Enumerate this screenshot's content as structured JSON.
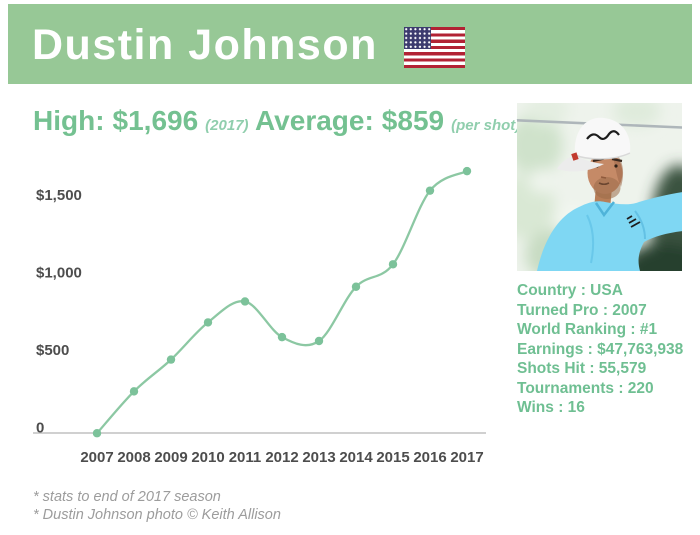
{
  "header": {
    "title": "Dustin Johnson",
    "flag_icon": "usa-flag-icon",
    "banner_bg": "#97c896",
    "title_color": "#ffffff"
  },
  "summary": {
    "high": {
      "label": "High:",
      "value": "$1,696",
      "note": "(2017)"
    },
    "average": {
      "label": "Average:",
      "value": "$859",
      "note": "(per shot)"
    }
  },
  "profile": {
    "photo_alt": "Dustin Johnson wearing white TaylorMade cap and blue shirt, mid golf swing",
    "stats": [
      {
        "label": "Country",
        "value": "USA"
      },
      {
        "label": "Turned Pro",
        "value": "2007"
      },
      {
        "label": "World Ranking",
        "value": "#1"
      },
      {
        "label": "Earnings",
        "value": "$47,763,938"
      },
      {
        "label": "Shots Hit",
        "value": "55,579"
      },
      {
        "label": "Tournaments",
        "value": "220"
      },
      {
        "label": "Wins",
        "value": "16"
      }
    ]
  },
  "chart_data": {
    "type": "line",
    "title": "",
    "xlabel": "",
    "ylabel": "",
    "x": [
      2007,
      2008,
      2009,
      2010,
      2011,
      2012,
      2013,
      2014,
      2015,
      2016,
      2017
    ],
    "values": [
      5,
      275,
      480,
      720,
      855,
      625,
      600,
      950,
      1095,
      1570,
      1696
    ],
    "y_ticks": [
      {
        "label": "$1,500",
        "value": 1500
      },
      {
        "label": "$1,000",
        "value": 1000
      },
      {
        "label": "$500",
        "value": 500
      },
      {
        "label": "0",
        "value": 0
      }
    ],
    "ylim": [
      0,
      1750
    ],
    "grid": false,
    "legend": "none",
    "line_color": "#8cc8a3",
    "dot_color": "#7cc29a",
    "axis_color": "#b3b3b3",
    "tick_color": "#4d4d4d"
  },
  "footnotes": [
    "* stats to end of 2017 season",
    "* Dustin Johnson photo © Keith Allison"
  ],
  "colors": {
    "banner_bg": "#97c896",
    "accent_text": "#74c191",
    "note_text": "#90cead",
    "stats_text": "#6fbf92",
    "footnote_text": "#9c9c9c",
    "shirt_blue": "#7fd7f3",
    "skin": "#c58a67"
  }
}
